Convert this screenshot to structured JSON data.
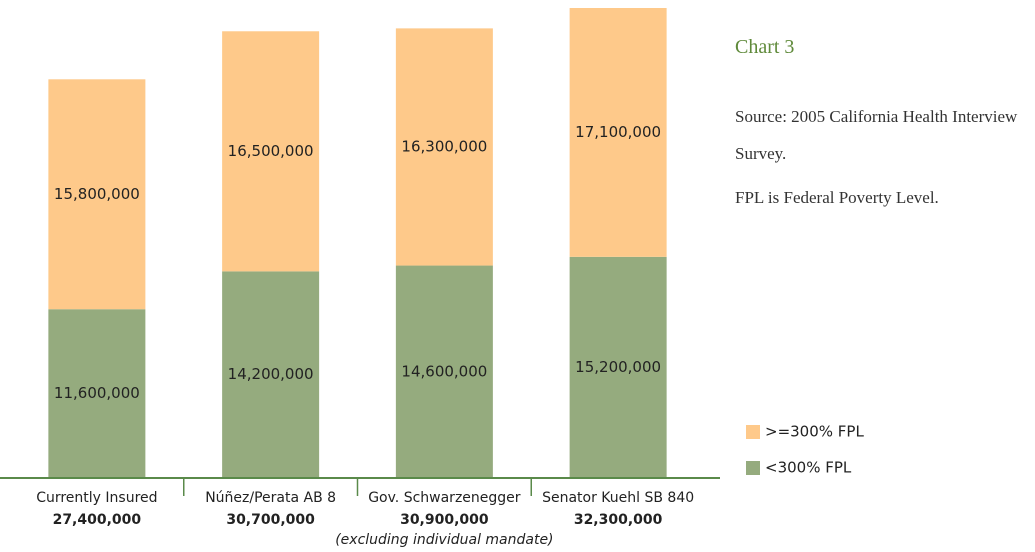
{
  "chart_data": {
    "type": "stacked_bar",
    "title": "Chart 3",
    "source": "Source: 2005 California Health Interview Survey.",
    "note": "FPL is Federal Poverty Level.",
    "categories": [
      "Currently Insured",
      "Núñez/Perata AB 8",
      "Gov. Schwarzenegger",
      "Senator Kuehl SB 840"
    ],
    "category_totals": [
      "27,400,000",
      "30,700,000",
      "30,900,000",
      "32,300,000"
    ],
    "annotation": "(excluding individual mandate)",
    "series": [
      {
        "name": "<300% FPL",
        "color": "#95ab7e",
        "values": [
          11600000,
          14200000,
          14600000,
          15200000
        ],
        "value_labels": [
          "11,600,000",
          "14,200,000",
          "14,600,000",
          "15,200,000"
        ]
      },
      {
        "name": ">=300% FPL",
        "color": "#fec98a",
        "values": [
          15800000,
          16500000,
          16300000,
          17100000
        ],
        "value_labels": [
          "15,800,000",
          "16,500,000",
          "16,300,000",
          "17,100,000"
        ]
      }
    ]
  }
}
